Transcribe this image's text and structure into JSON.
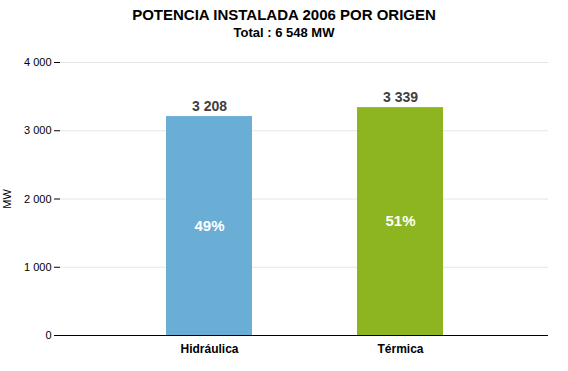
{
  "chart_data": {
    "type": "bar",
    "title": "POTENCIA INSTALADA 2006 POR ORIGEN",
    "subtitle": "Total : 6 548 MW",
    "categories": [
      "Hidráulica",
      "Térmica"
    ],
    "values": [
      3208,
      3339
    ],
    "value_labels": [
      "3 208",
      "3 339"
    ],
    "percentages": [
      "49%",
      "51%"
    ],
    "colors": [
      "#6aaed6",
      "#8db520"
    ],
    "ylabel": "MW",
    "ylim": [
      0,
      4000
    ],
    "yticks": [
      0,
      {
        "value": 1000,
        "label": "1 000"
      },
      {
        "value": 2000,
        "label": "2 000"
      },
      {
        "value": 3000,
        "label": "3 000"
      },
      {
        "value": 4000,
        "label": "4 000"
      }
    ],
    "grid": true,
    "data_labels": true
  }
}
